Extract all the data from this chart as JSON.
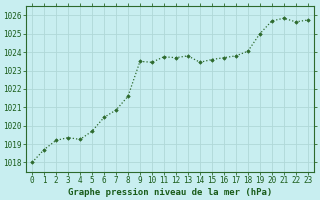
{
  "x": [
    0,
    1,
    2,
    3,
    4,
    5,
    6,
    7,
    8,
    9,
    10,
    11,
    12,
    13,
    14,
    15,
    16,
    17,
    18,
    19,
    20,
    21,
    22,
    23
  ],
  "y": [
    1018.0,
    1018.7,
    1019.2,
    1019.35,
    1019.25,
    1019.7,
    1020.45,
    1020.85,
    1021.6,
    1023.5,
    1023.45,
    1023.75,
    1023.7,
    1023.8,
    1023.45,
    1023.6,
    1023.7,
    1023.8,
    1024.05,
    1025.0,
    1025.7,
    1025.85,
    1025.65,
    1025.75
  ],
  "ylim": [
    1017.5,
    1026.5
  ],
  "yticks": [
    1018,
    1019,
    1020,
    1021,
    1022,
    1023,
    1024,
    1025,
    1026
  ],
  "xticks": [
    0,
    1,
    2,
    3,
    4,
    5,
    6,
    7,
    8,
    9,
    10,
    11,
    12,
    13,
    14,
    15,
    16,
    17,
    18,
    19,
    20,
    21,
    22,
    23
  ],
  "xlabel": "Graphe pression niveau de la mer (hPa)",
  "line_color": "#2d6a2d",
  "marker_color": "#2d6a2d",
  "bg_color": "#c8eef0",
  "plot_bg_color": "#c8eef0",
  "grid_color": "#b0d8d8",
  "text_color": "#1a5c1a",
  "tick_label_color": "#1a5c1a",
  "xlabel_fontsize": 6.5,
  "tick_fontsize": 5.5,
  "marker": "D",
  "markersize": 1.8,
  "linewidth": 0.9
}
